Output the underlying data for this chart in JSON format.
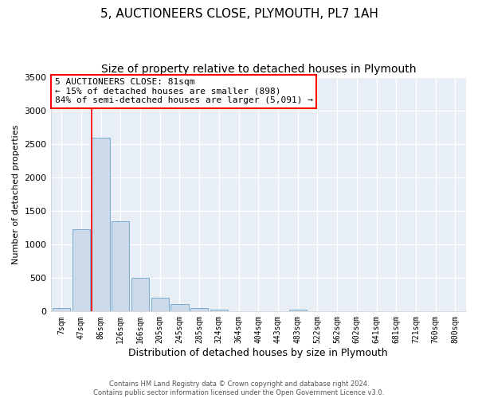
{
  "title": "5, AUCTIONEERS CLOSE, PLYMOUTH, PL7 1AH",
  "subtitle": "Size of property relative to detached houses in Plymouth",
  "xlabel": "Distribution of detached houses by size in Plymouth",
  "ylabel": "Number of detached properties",
  "bin_labels": [
    "7sqm",
    "47sqm",
    "86sqm",
    "126sqm",
    "166sqm",
    "205sqm",
    "245sqm",
    "285sqm",
    "324sqm",
    "364sqm",
    "404sqm",
    "443sqm",
    "483sqm",
    "522sqm",
    "562sqm",
    "602sqm",
    "641sqm",
    "681sqm",
    "721sqm",
    "760sqm",
    "800sqm"
  ],
  "bar_heights": [
    50,
    1230,
    2590,
    1350,
    500,
    200,
    110,
    50,
    30,
    0,
    0,
    0,
    30,
    0,
    0,
    0,
    0,
    0,
    0,
    0,
    0
  ],
  "bar_color": "#ccd9e8",
  "bar_edge_color": "#7bacd0",
  "red_line_bin_index": 2,
  "annotation_title": "5 AUCTIONEERS CLOSE: 81sqm",
  "annotation_line1": "← 15% of detached houses are smaller (898)",
  "annotation_line2": "84% of semi-detached houses are larger (5,091) →",
  "ylim": [
    0,
    3500
  ],
  "yticks": [
    0,
    500,
    1000,
    1500,
    2000,
    2500,
    3000,
    3500
  ],
  "footer1": "Contains HM Land Registry data © Crown copyright and database right 2024.",
  "footer2": "Contains public sector information licensed under the Open Government Licence v3.0.",
  "bg_color": "#ffffff",
  "plot_bg_color": "#e8eef5",
  "grid_color": "#ffffff",
  "title_fontsize": 11,
  "subtitle_fontsize": 10,
  "xlabel_fontsize": 9,
  "ylabel_fontsize": 8,
  "tick_fontsize": 7
}
